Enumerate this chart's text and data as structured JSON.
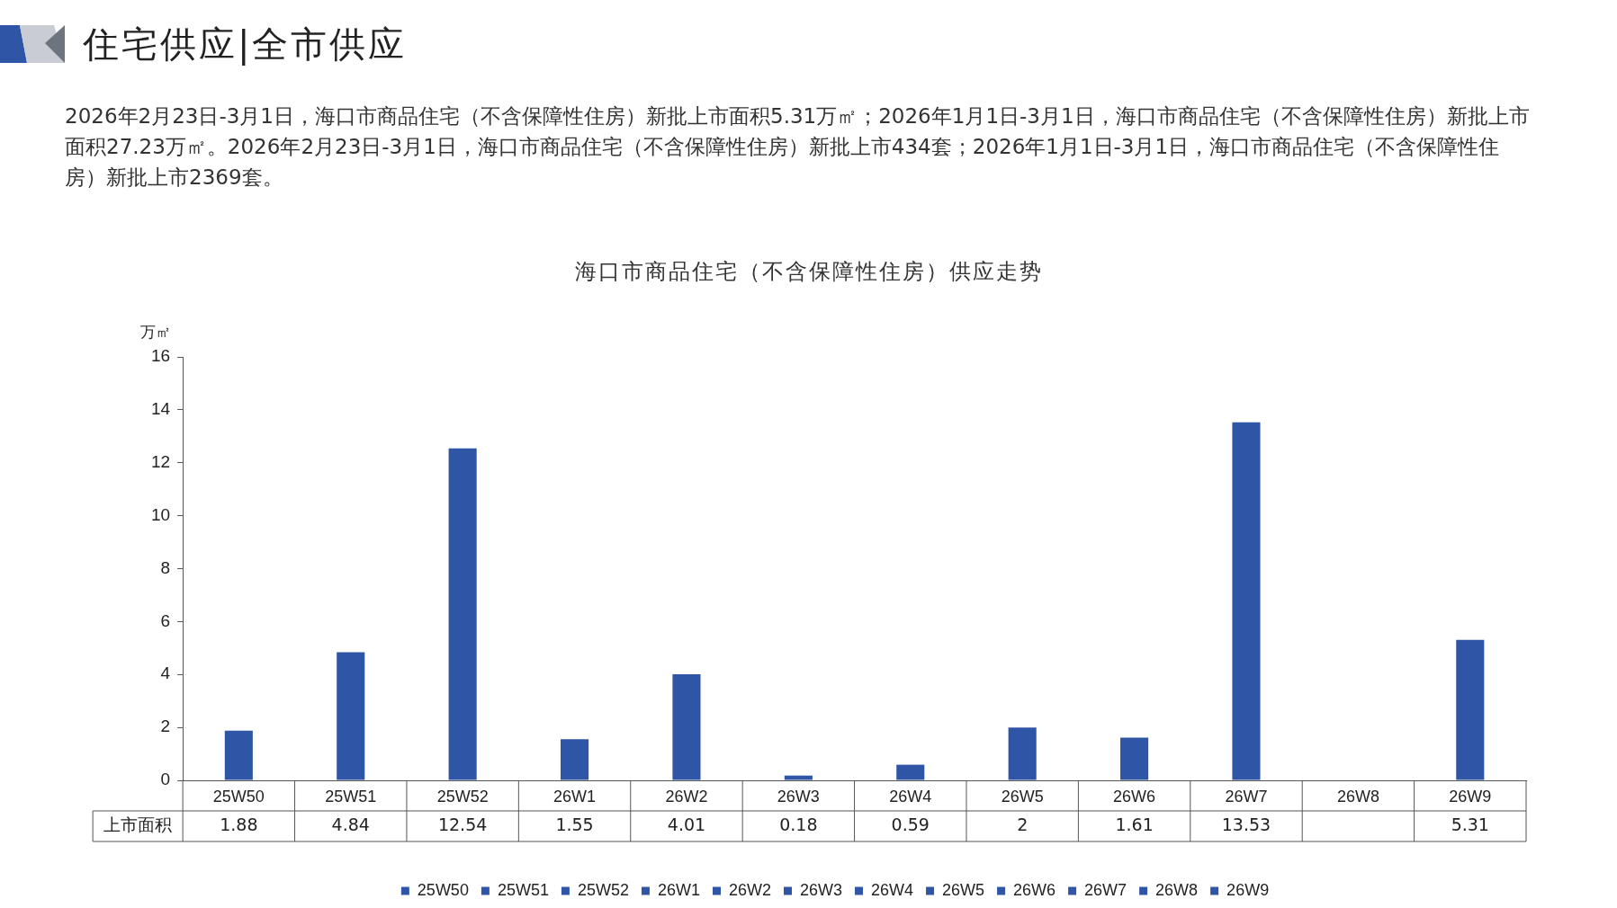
{
  "chart_data": {
    "type": "bar",
    "title": "海口市商品住宅（不含保障性住房）供应走势",
    "ylabel": "万㎡",
    "annotations": [
      "住宅供应|全市供应",
      "2026年2月23日-3月1日，海口市商品住宅（不含保障性住房）新批上市面积5.31万㎡；2026年1月1日-3月1日，海口市商品住宅（不含保障性住房）新批上市面积27.23万㎡。2026年2月23日-3月1日，海口市商品住宅（不含保障性住房）新批上市434套；2026年1月1日-3月1日，海口市商品住宅（不含保障性住房）新批上市2369套。",
      "上市面积"
    ],
    "categories": [
      "25W50",
      "25W51",
      "25W52",
      "26W1",
      "26W2",
      "26W3",
      "26W4",
      "26W5",
      "26W6",
      "26W7",
      "26W8",
      "26W9"
    ],
    "series": [
      {
        "name": "25W50",
        "color": "#2f56a6",
        "values": [
          1.88,
          null,
          null,
          null,
          null,
          null,
          null,
          null,
          null,
          null,
          null,
          null
        ]
      },
      {
        "name": "25W51",
        "color": "#2f56a6",
        "values": [
          null,
          4.84,
          null,
          null,
          null,
          null,
          null,
          null,
          null,
          null,
          null,
          null
        ]
      },
      {
        "name": "25W52",
        "color": "#2f56a6",
        "values": [
          null,
          null,
          12.54,
          null,
          null,
          null,
          null,
          null,
          null,
          null,
          null,
          null
        ]
      },
      {
        "name": "26W1",
        "color": "#2f56a6",
        "values": [
          null,
          null,
          null,
          1.55,
          null,
          null,
          null,
          null,
          null,
          null,
          null,
          null
        ]
      },
      {
        "name": "26W2",
        "color": "#2f56a6",
        "values": [
          null,
          null,
          null,
          null,
          4.01,
          null,
          null,
          null,
          null,
          null,
          null,
          null
        ]
      },
      {
        "name": "26W3",
        "color": "#2f56a6",
        "values": [
          null,
          null,
          null,
          null,
          null,
          0.18,
          null,
          null,
          null,
          null,
          null,
          null
        ]
      },
      {
        "name": "26W4",
        "color": "#2f56a6",
        "values": [
          null,
          null,
          null,
          null,
          null,
          null,
          0.59,
          null,
          null,
          null,
          null,
          null
        ]
      },
      {
        "name": "26W5",
        "color": "#2f56a6",
        "values": [
          null,
          null,
          null,
          null,
          null,
          null,
          null,
          2,
          null,
          null,
          null,
          null
        ]
      },
      {
        "name": "26W6",
        "color": "#2f56a6",
        "values": [
          null,
          null,
          null,
          null,
          null,
          null,
          null,
          null,
          1.61,
          null,
          null,
          null
        ]
      },
      {
        "name": "26W7",
        "color": "#2f56a6",
        "values": [
          null,
          null,
          null,
          null,
          null,
          null,
          null,
          null,
          null,
          13.53,
          null,
          null
        ]
      },
      {
        "name": "26W8",
        "color": "#2f56a6",
        "values": [
          null,
          null,
          null,
          null,
          null,
          null,
          null,
          null,
          null,
          null,
          null,
          null
        ]
      },
      {
        "name": "26W9",
        "color": "#2f56a6",
        "values": [
          null,
          null,
          null,
          null,
          null,
          null,
          null,
          null,
          null,
          null,
          null,
          5.31
        ]
      }
    ],
    "ylim": [
      0,
      16
    ],
    "yticks": [
      0,
      2,
      4,
      6,
      8,
      10,
      12,
      14,
      16
    ],
    "data_labels": true,
    "legend": "bottom",
    "grid": false
  }
}
